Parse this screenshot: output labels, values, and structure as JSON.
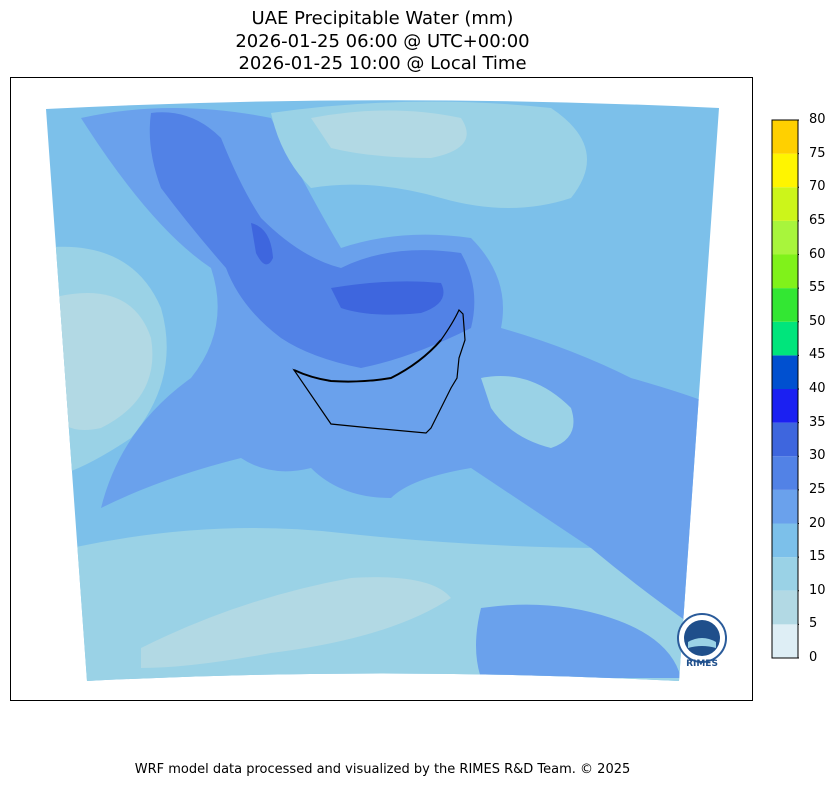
{
  "title_lines": [
    "UAE Precipitable Water (mm)",
    "2026-01-25 06:00 @ UTC+00:00",
    "2026-01-25 10:00 @ Local Time"
  ],
  "colorbar": {
    "ticks": [
      "0",
      "5",
      "10",
      "15",
      "20",
      "25",
      "30",
      "35",
      "40",
      "45",
      "50",
      "55",
      "60",
      "65",
      "70",
      "75",
      "80"
    ],
    "colors": [
      "#deeef5",
      "#b2d9e4",
      "#9ad2e6",
      "#7cc0ea",
      "#6aa1ec",
      "#5282e6",
      "#3e66de",
      "#1b20f2",
      "#0050d0",
      "#00e57c",
      "#33e733",
      "#80f21a",
      "#a8f53c",
      "#ccf51a",
      "#fff500",
      "#ffd000"
    ]
  },
  "logo": {
    "text": "RIMES"
  },
  "footer": "WRF model data processed and visualized by the RIMES R&D Team. © 2025"
}
